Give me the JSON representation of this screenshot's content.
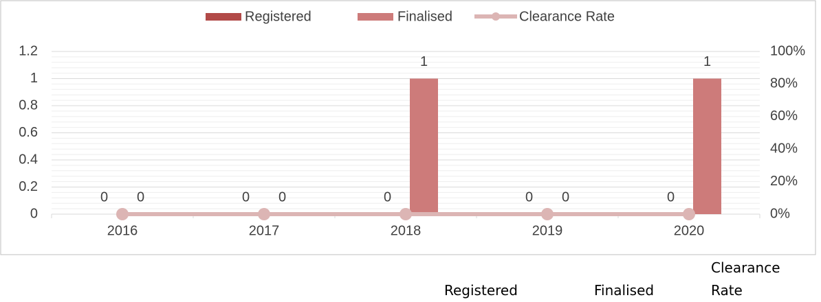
{
  "chart_data": {
    "type": "bar",
    "categories": [
      "2016",
      "2017",
      "2018",
      "2019",
      "2020"
    ],
    "series": [
      {
        "name": "Registered",
        "color": "#b24a48",
        "values": [
          0,
          0,
          0,
          0,
          0
        ]
      },
      {
        "name": "Finalised",
        "color": "#cd7b7a",
        "values": [
          0,
          0,
          1,
          0,
          1
        ]
      },
      {
        "name": "Clearance Rate",
        "type": "line",
        "axis": "y2",
        "color": "#dcb5b4",
        "values": [
          0,
          0,
          0,
          0,
          0
        ]
      }
    ],
    "ylim": [
      0,
      1.2
    ],
    "yticks": [
      0,
      0.2,
      0.4,
      0.6,
      0.8,
      1,
      1.2
    ],
    "y2lim": [
      0,
      100
    ],
    "y2ticks": [
      {
        "value": 0,
        "label": "0%"
      },
      {
        "value": 20,
        "label": "20%"
      },
      {
        "value": 40,
        "label": "40%"
      },
      {
        "value": 60,
        "label": "60%"
      },
      {
        "value": 80,
        "label": "80%"
      },
      {
        "value": 100,
        "label": "100%"
      }
    ],
    "grid": true,
    "legend": "top"
  },
  "table_header": [
    "Registered",
    "Finalised",
    "Clearance Rate"
  ]
}
